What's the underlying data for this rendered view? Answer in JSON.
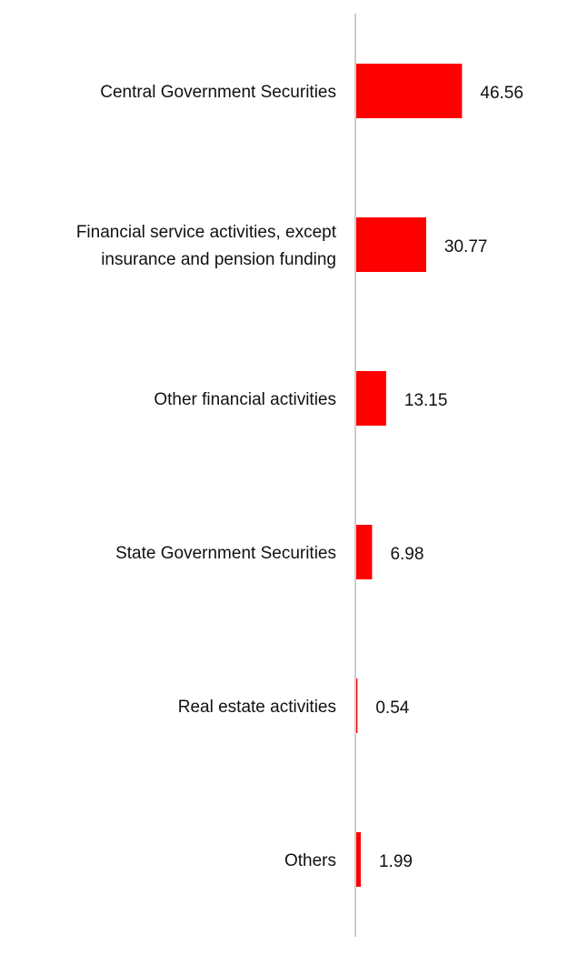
{
  "chart_data": {
    "type": "bar",
    "orientation": "horizontal",
    "categories": [
      [
        "Central Government Securities"
      ],
      [
        "Financial service activities, except",
        "insurance and pension funding"
      ],
      [
        "Other financial activities"
      ],
      [
        "State Government Securities"
      ],
      [
        "Real estate activities"
      ],
      [
        "Others"
      ]
    ],
    "values": [
      46.56,
      30.77,
      13.15,
      6.98,
      0.54,
      1.99
    ],
    "value_labels": [
      "46.56",
      "30.77",
      "13.15",
      "6.98",
      "0.54",
      "1.99"
    ],
    "title": "",
    "xlabel": "",
    "ylabel": "",
    "xlim": [
      0,
      100
    ],
    "grid": false,
    "legend": "none",
    "colors": {
      "bar": "#ff0000",
      "axis": "#cccccc",
      "text": "#111111"
    }
  }
}
